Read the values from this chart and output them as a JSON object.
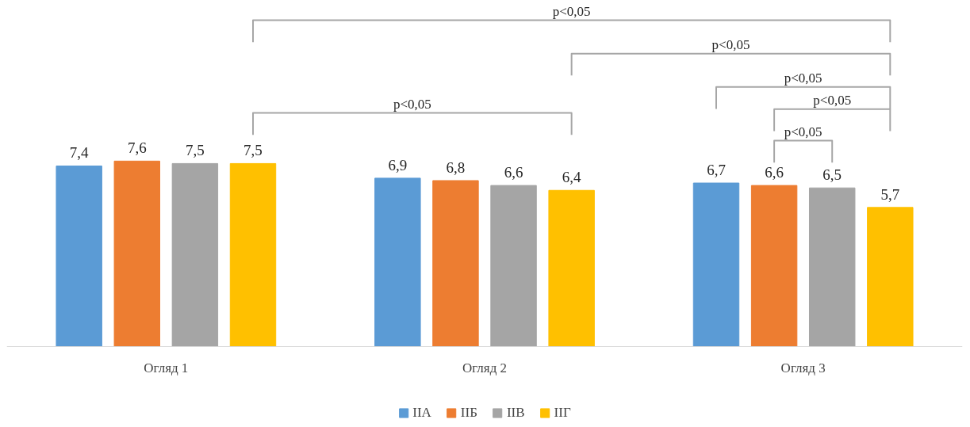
{
  "chart_data": {
    "type": "bar",
    "categories": [
      "Огляд 1",
      "Огляд 2",
      "Огляд 3"
    ],
    "series": [
      {
        "name": "IIА",
        "color": "#5b9bd5",
        "values": [
          7.4,
          6.9,
          6.7
        ],
        "value_labels": [
          "7,4",
          "6,9",
          "6,7"
        ]
      },
      {
        "name": "IIБ",
        "color": "#ed7d31",
        "values": [
          7.6,
          6.8,
          6.6
        ],
        "value_labels": [
          "7,6",
          "6,8",
          "6,6"
        ]
      },
      {
        "name": "IIВ",
        "color": "#a5a5a5",
        "values": [
          7.5,
          6.6,
          6.5
        ],
        "value_labels": [
          "7,5",
          "6,6",
          "6,5"
        ]
      },
      {
        "name": "IIГ",
        "color": "#ffc000",
        "values": [
          7.5,
          6.4,
          5.7
        ],
        "value_labels": [
          "7,5",
          "6,4",
          "5,7"
        ]
      }
    ],
    "legend": "bottom",
    "annotations": [
      "p<0,05",
      "p<0,05",
      "p<0,05",
      "p<0,05",
      "p<0,05",
      "p<0,05"
    ]
  }
}
